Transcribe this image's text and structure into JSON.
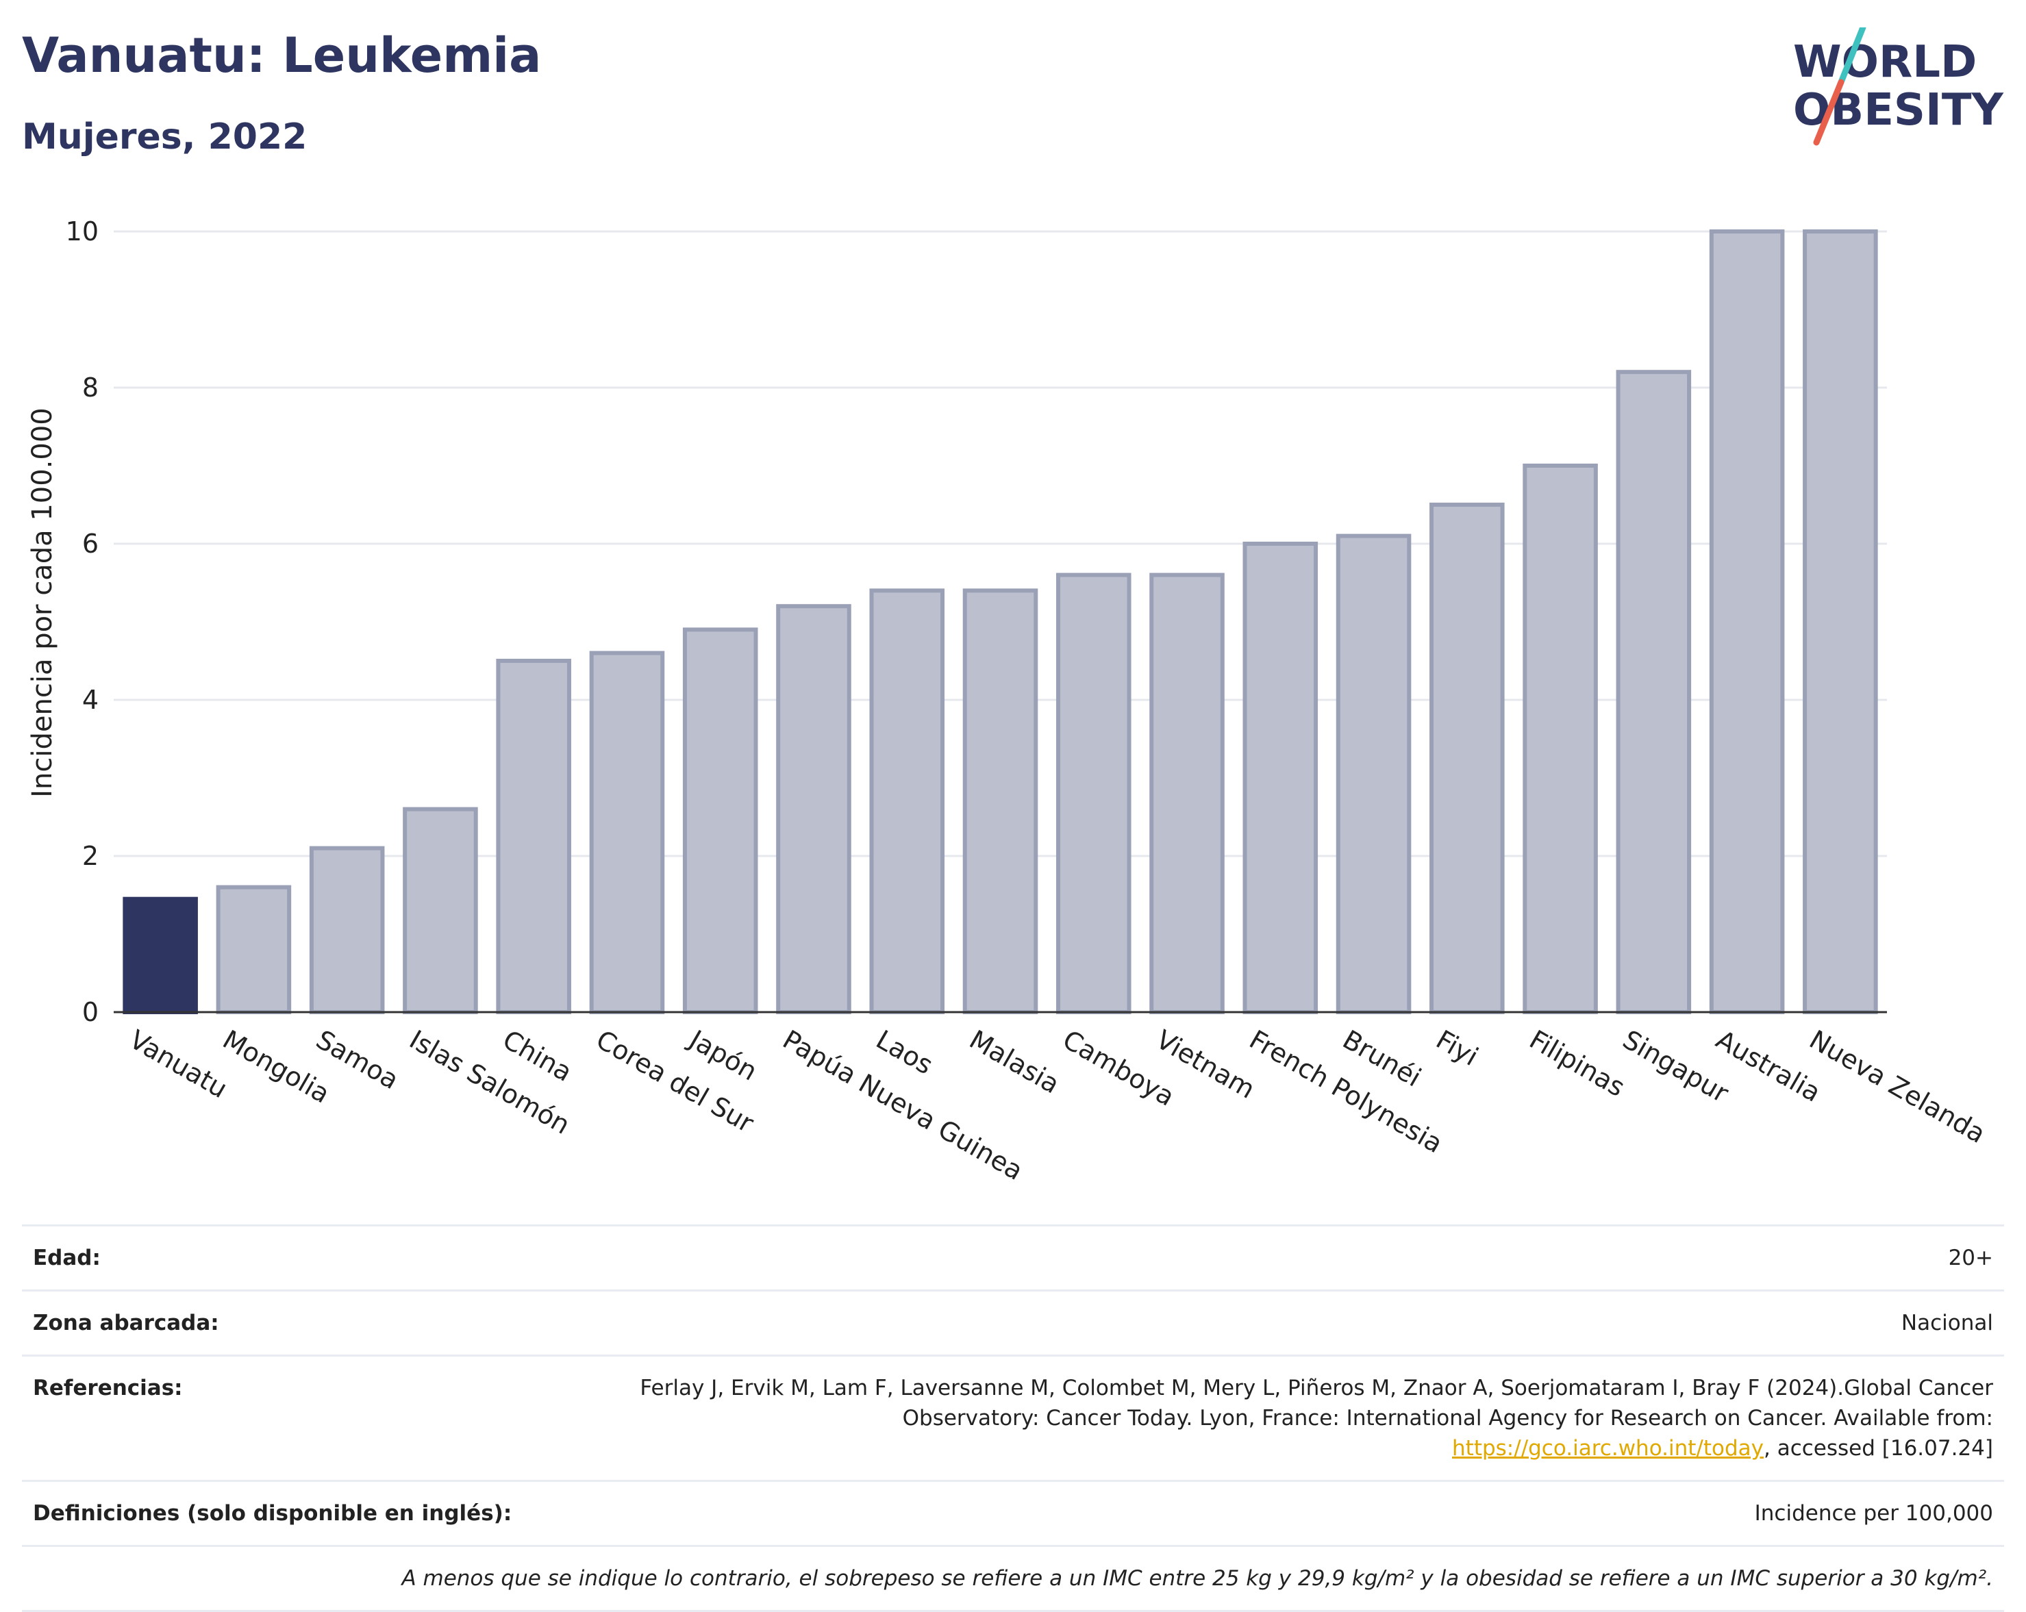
{
  "header": {
    "title": "Vanuatu: Leukemia",
    "subtitle": "Mujeres, 2022"
  },
  "logo": {
    "line1": "WORLD",
    "line2": "OBESITY",
    "colors": {
      "text": "#2d3560",
      "slash_top": "#3fc1c0",
      "slash_bottom": "#e8604c"
    }
  },
  "chart_data": {
    "type": "bar",
    "ylabel": "Incidencia por cada 100.000",
    "ylim": [
      0,
      10
    ],
    "yticks": [
      0,
      2,
      4,
      6,
      8,
      10
    ],
    "categories": [
      "Vanuatu",
      "Mongolia",
      "Samoa",
      "Islas Salomón",
      "China",
      "Corea del Sur",
      "Japón",
      "Papúa Nueva Guinea",
      "Laos",
      "Malasia",
      "Camboya",
      "Vietnam",
      "French Polynesia",
      "Brunéi",
      "Fiyi",
      "Filipinas",
      "Singapur",
      "Australia",
      "Nueva Zelanda"
    ],
    "values": [
      1.45,
      1.6,
      2.1,
      2.6,
      4.5,
      4.6,
      4.9,
      5.2,
      5.4,
      5.4,
      5.6,
      5.6,
      6.0,
      6.1,
      6.5,
      7.0,
      8.2,
      10.0,
      10.0
    ],
    "highlight": "Vanuatu",
    "grid": true,
    "colors": {
      "highlight": "#2d3560",
      "bar": "#bcc0ce",
      "bar_edge": "#9aa0b6",
      "grid": "#e6e8ee",
      "axis": "#333333"
    }
  },
  "info": {
    "age": {
      "label": "Edad:",
      "value": "20+"
    },
    "zone": {
      "label": "Zona abarcada:",
      "value": "Nacional"
    },
    "references": {
      "label": "Referencias:",
      "text_before": "Ferlay J, Ervik M, Lam F, Laversanne M, Colombet M, Mery L, Piñeros M, Znaor A, Soerjomataram I, Bray F (2024).Global Cancer Observatory: Cancer Today. Lyon, France: International Agency for Research on Cancer. Available from: ",
      "link": "https://gco.iarc.who.int/today",
      "text_after": ", accessed [16.07.24]"
    },
    "definitions": {
      "label": "Definiciones (solo disponible en inglés):",
      "value": "Incidence per 100,000"
    },
    "note": "A menos que se indique lo contrario, el sobrepeso se refiere a un IMC entre 25 kg y 29,9 kg/m² y la obesidad se refiere a un IMC superior a 30 kg/m²."
  }
}
